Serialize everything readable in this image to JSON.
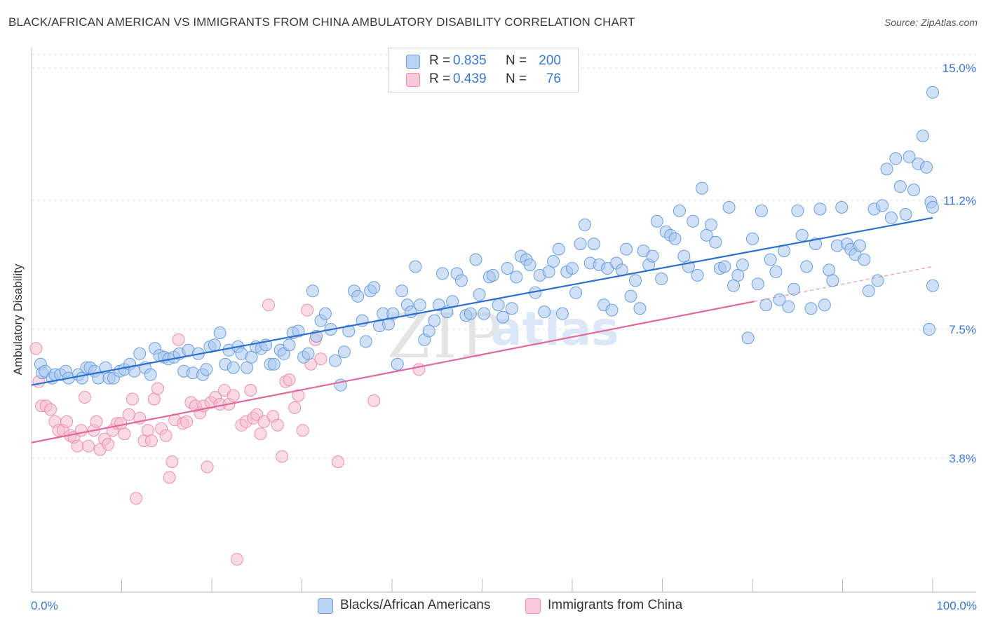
{
  "header": {
    "title": "BLACK/AFRICAN AMERICAN VS IMMIGRANTS FROM CHINA AMBULATORY DISABILITY CORRELATION CHART",
    "source": "Source: ZipAtlas.com"
  },
  "legend_top": {
    "rows": [
      {
        "r_label": "R =",
        "r_value": "0.835",
        "n_label": "N =",
        "n_value": "200"
      },
      {
        "r_label": "R =",
        "r_value": "0.439",
        "n_label": "N =",
        "n_value": "76"
      }
    ]
  },
  "watermark": {
    "zip": "ZIP",
    "atlas": "atlas"
  },
  "colors": {
    "blue_fill": "#a9c8f0",
    "blue_stroke": "#6a9ee0",
    "blue_line": "#2b6fcf",
    "pink_fill": "#f6bdd0",
    "pink_stroke": "#ec8fb0",
    "pink_line": "#e0699a",
    "accent_text": "#3b78d0",
    "grid": "#dcdcdc"
  },
  "chart_data": {
    "type": "scatter",
    "title": "BLACK/AFRICAN AMERICAN VS IMMIGRANTS FROM CHINA AMBULATORY DISABILITY CORRELATION CHART",
    "xlabel": "",
    "ylabel": "Ambulatory Disability",
    "xlim": [
      0,
      100
    ],
    "ylim": [
      0,
      15.5
    ],
    "x_tick_labels": [
      "0.0%",
      "100.0%"
    ],
    "y_ticks": [
      3.8,
      7.5,
      11.2,
      15.0
    ],
    "y_tick_labels": [
      "3.8%",
      "7.5%",
      "11.2%",
      "15.0%"
    ],
    "grid": true,
    "legend_position": "bottom",
    "series": [
      {
        "name": "Blacks/African Americans",
        "color": "#a9c8f0",
        "R": 0.835,
        "N": 200,
        "trend": {
          "x": [
            0,
            100
          ],
          "y": [
            5.9,
            10.7
          ]
        },
        "points": [
          [
            1.0,
            6.5
          ],
          [
            1.2,
            6.25
          ],
          [
            1.5,
            6.3
          ],
          [
            2.3,
            6.1
          ],
          [
            2.6,
            6.2
          ],
          [
            3.2,
            6.2
          ],
          [
            3.8,
            6.3
          ],
          [
            4.1,
            6.1
          ],
          [
            5.2,
            6.2
          ],
          [
            5.6,
            6.1
          ],
          [
            6.1,
            6.4
          ],
          [
            6.5,
            6.4
          ],
          [
            7.0,
            6.3
          ],
          [
            7.4,
            6.1
          ],
          [
            8.2,
            6.4
          ],
          [
            8.6,
            6.1
          ],
          [
            9.1,
            6.1
          ],
          [
            9.8,
            6.3
          ],
          [
            10.3,
            6.35
          ],
          [
            10.9,
            6.5
          ],
          [
            11.4,
            6.3
          ],
          [
            12.0,
            6.8
          ],
          [
            12.6,
            6.4
          ],
          [
            13.2,
            6.2
          ],
          [
            13.7,
            6.95
          ],
          [
            14.2,
            6.75
          ],
          [
            14.7,
            6.7
          ],
          [
            15.2,
            6.65
          ],
          [
            15.8,
            6.7
          ],
          [
            16.4,
            6.8
          ],
          [
            16.9,
            6.3
          ],
          [
            17.4,
            6.9
          ],
          [
            17.9,
            6.25
          ],
          [
            18.5,
            6.8
          ],
          [
            19.0,
            6.2
          ],
          [
            19.4,
            6.35
          ],
          [
            19.8,
            7.0
          ],
          [
            20.3,
            7.05
          ],
          [
            20.9,
            7.4
          ],
          [
            21.5,
            6.5
          ],
          [
            21.9,
            6.9
          ],
          [
            22.4,
            6.4
          ],
          [
            22.9,
            7.0
          ],
          [
            23.3,
            6.8
          ],
          [
            23.9,
            6.4
          ],
          [
            24.4,
            6.7
          ],
          [
            24.9,
            7.0
          ],
          [
            25.5,
            6.95
          ],
          [
            26.0,
            7.05
          ],
          [
            26.5,
            6.5
          ],
          [
            26.9,
            6.5
          ],
          [
            27.6,
            6.9
          ],
          [
            28.0,
            6.8
          ],
          [
            28.6,
            7.05
          ],
          [
            29.0,
            7.4
          ],
          [
            29.6,
            7.45
          ],
          [
            30.2,
            6.7
          ],
          [
            30.7,
            6.8
          ],
          [
            31.2,
            8.6
          ],
          [
            31.6,
            7.3
          ],
          [
            32.1,
            7.75
          ],
          [
            32.6,
            7.95
          ],
          [
            33.2,
            7.5
          ],
          [
            33.7,
            6.6
          ],
          [
            34.3,
            5.9
          ],
          [
            34.7,
            6.85
          ],
          [
            35.2,
            7.45
          ],
          [
            35.8,
            8.6
          ],
          [
            36.2,
            8.45
          ],
          [
            36.7,
            7.75
          ],
          [
            37.1,
            7.15
          ],
          [
            37.6,
            8.6
          ],
          [
            38.0,
            8.7
          ],
          [
            38.6,
            7.6
          ],
          [
            39.0,
            7.95
          ],
          [
            39.6,
            7.65
          ],
          [
            40.1,
            7.95
          ],
          [
            40.6,
            6.5
          ],
          [
            41.1,
            8.6
          ],
          [
            41.7,
            8.2
          ],
          [
            42.1,
            8.0
          ],
          [
            42.6,
            9.3
          ],
          [
            43.1,
            8.2
          ],
          [
            43.6,
            7.2
          ],
          [
            44.1,
            7.45
          ],
          [
            44.7,
            7.75
          ],
          [
            45.2,
            8.2
          ],
          [
            45.6,
            9.1
          ],
          [
            46.1,
            8.0
          ],
          [
            46.7,
            8.3
          ],
          [
            47.2,
            9.1
          ],
          [
            47.7,
            8.9
          ],
          [
            48.2,
            7.9
          ],
          [
            48.7,
            7.95
          ],
          [
            49.3,
            9.5
          ],
          [
            49.7,
            8.5
          ],
          [
            50.2,
            7.95
          ],
          [
            50.8,
            9.0
          ],
          [
            51.2,
            9.05
          ],
          [
            51.8,
            8.2
          ],
          [
            52.3,
            7.85
          ],
          [
            52.8,
            9.25
          ],
          [
            53.3,
            8.1
          ],
          [
            53.8,
            9.0
          ],
          [
            54.3,
            9.6
          ],
          [
            54.9,
            9.5
          ],
          [
            55.3,
            9.35
          ],
          [
            55.9,
            8.55
          ],
          [
            56.4,
            9.05
          ],
          [
            56.9,
            8.0
          ],
          [
            57.4,
            9.15
          ],
          [
            57.9,
            9.45
          ],
          [
            58.5,
            9.8
          ],
          [
            58.9,
            7.95
          ],
          [
            59.4,
            9.15
          ],
          [
            60.0,
            9.25
          ],
          [
            60.4,
            8.55
          ],
          [
            60.9,
            9.95
          ],
          [
            61.4,
            10.5
          ],
          [
            62.0,
            9.4
          ],
          [
            62.4,
            9.95
          ],
          [
            63.0,
            9.35
          ],
          [
            63.5,
            8.2
          ],
          [
            63.9,
            9.25
          ],
          [
            64.4,
            8.05
          ],
          [
            64.9,
            9.4
          ],
          [
            65.5,
            9.2
          ],
          [
            66.0,
            9.8
          ],
          [
            66.5,
            8.45
          ],
          [
            67.0,
            8.9
          ],
          [
            67.5,
            8.1
          ],
          [
            67.9,
            9.75
          ],
          [
            68.5,
            9.35
          ],
          [
            68.9,
            9.6
          ],
          [
            69.4,
            10.6
          ],
          [
            69.9,
            8.95
          ],
          [
            70.4,
            10.3
          ],
          [
            70.9,
            10.2
          ],
          [
            71.4,
            10.1
          ],
          [
            71.9,
            10.9
          ],
          [
            72.4,
            9.6
          ],
          [
            72.9,
            9.3
          ],
          [
            73.4,
            10.6
          ],
          [
            73.9,
            9.05
          ],
          [
            74.4,
            11.55
          ],
          [
            74.9,
            10.2
          ],
          [
            75.4,
            10.5
          ],
          [
            75.9,
            10.0
          ],
          [
            76.4,
            9.25
          ],
          [
            76.9,
            9.3
          ],
          [
            77.4,
            11.0
          ],
          [
            77.9,
            8.75
          ],
          [
            78.4,
            9.05
          ],
          [
            78.9,
            9.35
          ],
          [
            79.5,
            7.25
          ],
          [
            80.0,
            10.1
          ],
          [
            80.6,
            8.8
          ],
          [
            81.0,
            10.9
          ],
          [
            81.5,
            8.2
          ],
          [
            82.0,
            9.5
          ],
          [
            82.6,
            9.15
          ],
          [
            83.0,
            8.35
          ],
          [
            83.5,
            9.75
          ],
          [
            84.0,
            8.15
          ],
          [
            84.6,
            8.65
          ],
          [
            85.0,
            10.9
          ],
          [
            85.5,
            10.2
          ],
          [
            86.0,
            9.3
          ],
          [
            86.5,
            8.1
          ],
          [
            87.0,
            9.95
          ],
          [
            87.5,
            10.95
          ],
          [
            88.0,
            8.2
          ],
          [
            88.5,
            9.2
          ],
          [
            88.9,
            8.9
          ],
          [
            89.4,
            9.9
          ],
          [
            89.9,
            11.0
          ],
          [
            90.5,
            9.95
          ],
          [
            90.9,
            9.8
          ],
          [
            91.4,
            9.65
          ],
          [
            91.9,
            9.9
          ],
          [
            92.4,
            9.5
          ],
          [
            92.9,
            8.6
          ],
          [
            93.5,
            10.95
          ],
          [
            93.9,
            8.9
          ],
          [
            94.4,
            11.05
          ],
          [
            94.9,
            12.1
          ],
          [
            95.4,
            10.7
          ],
          [
            95.9,
            12.4
          ],
          [
            96.4,
            11.6
          ],
          [
            97.0,
            10.8
          ],
          [
            97.4,
            12.45
          ],
          [
            97.9,
            11.5
          ],
          [
            98.4,
            12.25
          ],
          [
            98.9,
            13.05
          ],
          [
            99.3,
            12.15
          ],
          [
            99.6,
            7.5
          ],
          [
            99.8,
            11.15
          ],
          [
            100.0,
            8.75
          ],
          [
            100.0,
            14.3
          ],
          [
            100.0,
            11.0
          ]
        ]
      },
      {
        "name": "Immigrants from China",
        "color": "#f6bdd0",
        "R": 0.439,
        "N": 76,
        "trend": {
          "x": [
            0,
            80.2,
            100
          ],
          "y": [
            4.25,
            8.3,
            9.3
          ]
        },
        "points": [
          [
            0.5,
            6.95
          ],
          [
            0.8,
            6.0
          ],
          [
            1.1,
            5.3
          ],
          [
            1.6,
            5.3
          ],
          [
            2.1,
            5.2
          ],
          [
            2.6,
            4.85
          ],
          [
            3.0,
            4.6
          ],
          [
            3.5,
            4.6
          ],
          [
            3.9,
            4.85
          ],
          [
            4.3,
            4.45
          ],
          [
            4.7,
            4.4
          ],
          [
            5.1,
            4.15
          ],
          [
            5.5,
            4.6
          ],
          [
            5.9,
            5.55
          ],
          [
            6.3,
            4.15
          ],
          [
            6.9,
            4.6
          ],
          [
            7.2,
            4.85
          ],
          [
            7.6,
            4.05
          ],
          [
            8.1,
            4.35
          ],
          [
            8.5,
            4.2
          ],
          [
            9.0,
            4.6
          ],
          [
            9.5,
            4.8
          ],
          [
            9.9,
            4.8
          ],
          [
            10.3,
            4.5
          ],
          [
            10.8,
            5.05
          ],
          [
            11.2,
            5.5
          ],
          [
            11.6,
            2.65
          ],
          [
            12.0,
            4.95
          ],
          [
            12.5,
            4.3
          ],
          [
            12.9,
            4.6
          ],
          [
            13.3,
            4.3
          ],
          [
            13.6,
            5.5
          ],
          [
            14.0,
            5.8
          ],
          [
            14.4,
            4.65
          ],
          [
            14.9,
            4.45
          ],
          [
            15.3,
            3.25
          ],
          [
            15.6,
            3.7
          ],
          [
            15.9,
            4.9
          ],
          [
            16.3,
            7.2
          ],
          [
            16.8,
            4.8
          ],
          [
            17.2,
            4.85
          ],
          [
            17.7,
            5.4
          ],
          [
            18.2,
            5.3
          ],
          [
            18.7,
            5.1
          ],
          [
            19.1,
            5.3
          ],
          [
            19.5,
            3.55
          ],
          [
            19.9,
            5.4
          ],
          [
            20.4,
            5.55
          ],
          [
            20.9,
            5.35
          ],
          [
            21.4,
            5.75
          ],
          [
            21.9,
            5.35
          ],
          [
            22.4,
            5.6
          ],
          [
            22.8,
            0.9
          ],
          [
            23.3,
            4.75
          ],
          [
            23.8,
            4.85
          ],
          [
            24.3,
            5.75
          ],
          [
            24.6,
            4.95
          ],
          [
            25.0,
            5.05
          ],
          [
            25.4,
            4.5
          ],
          [
            25.8,
            4.85
          ],
          [
            26.3,
            8.2
          ],
          [
            26.8,
            5.0
          ],
          [
            27.3,
            4.75
          ],
          [
            27.8,
            3.85
          ],
          [
            28.2,
            6.0
          ],
          [
            28.6,
            6.05
          ],
          [
            29.2,
            5.25
          ],
          [
            29.6,
            5.6
          ],
          [
            30.1,
            4.6
          ],
          [
            30.6,
            8.05
          ],
          [
            31.0,
            6.5
          ],
          [
            31.5,
            7.2
          ],
          [
            32.1,
            6.65
          ],
          [
            34.0,
            3.7
          ],
          [
            38.0,
            5.45
          ],
          [
            43.0,
            6.35
          ]
        ]
      }
    ]
  },
  "legend_bottom": {
    "items": [
      {
        "label": "Blacks/African Americans"
      },
      {
        "label": "Immigrants from China"
      }
    ]
  }
}
